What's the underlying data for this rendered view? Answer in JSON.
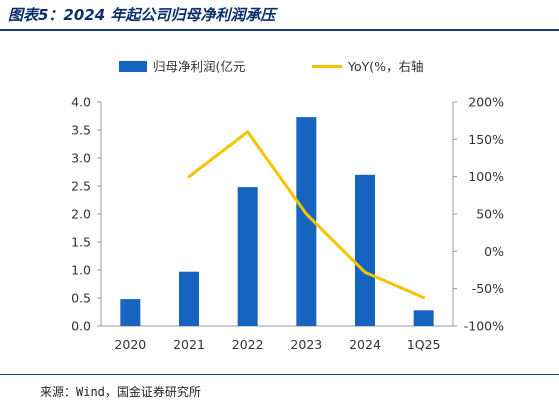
{
  "figure": {
    "title": "图表5：2024 年起公司归母净利润承压",
    "source": "来源：Wind，国金证券研究所"
  },
  "colors": {
    "bar": "#1565c0",
    "line": "#f5c300",
    "title": "#0b2f6b",
    "axis": "#999999"
  },
  "chart_data": {
    "type": "bar+line",
    "categories": [
      "2020",
      "2021",
      "2022",
      "2023",
      "2024",
      "1Q25"
    ],
    "series": [
      {
        "name": "归母净利润(亿元",
        "type": "bar",
        "axis": "left",
        "values": [
          0.48,
          0.97,
          2.48,
          3.73,
          2.7,
          0.28
        ]
      },
      {
        "name": "YoY(%，右轴",
        "type": "line",
        "axis": "right",
        "values": [
          null,
          100,
          160,
          50,
          -28,
          -62
        ]
      }
    ],
    "y_left": {
      "min": 0,
      "max": 4.0,
      "ticks": [
        "0.0",
        "0.5",
        "1.0",
        "1.5",
        "2.0",
        "2.5",
        "3.0",
        "3.5",
        "4.0"
      ]
    },
    "y_right": {
      "min": -100,
      "max": 200,
      "ticks": [
        "-100%",
        "-50%",
        "0%",
        "50%",
        "100%",
        "150%",
        "200%"
      ]
    },
    "legend_position": "top",
    "grid": false
  }
}
